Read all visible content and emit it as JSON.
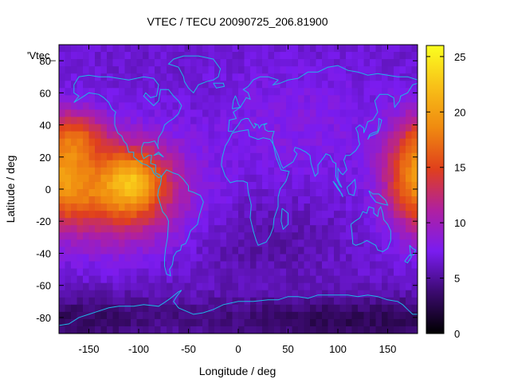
{
  "chart_data": {
    "type": "heatmap",
    "title": "VTEC / TECU 20090725_206.81900",
    "xlabel": "Longitude / deg",
    "ylabel": "Latitude / deg",
    "legend_label": "'Vtec_",
    "xlim": [
      -180,
      180
    ],
    "ylim": [
      -90,
      90
    ],
    "x_ticks": [
      -150,
      -100,
      -50,
      0,
      50,
      100,
      150
    ],
    "y_ticks": [
      -80,
      -60,
      -40,
      -20,
      0,
      20,
      40,
      60,
      80
    ],
    "colorbar": {
      "range": [
        0,
        26
      ],
      "ticks": [
        0,
        5,
        10,
        15,
        20,
        25
      ],
      "colors": [
        "#000000",
        "#3b0a6e",
        "#7a1cf0",
        "#b020a0",
        "#e0401c",
        "#f08a10",
        "#f8c018",
        "#fbff20"
      ],
      "orientation": "vertical",
      "placement": "right"
    },
    "grid": false,
    "features": [
      {
        "lon": -110,
        "lat": 0,
        "vtec": 24,
        "description_level": "maximum near equator over eastern Pacific"
      },
      {
        "lon": -160,
        "lat": 0,
        "vtec": 22
      },
      {
        "lon": -90,
        "lat": 20,
        "vtec": 19
      },
      {
        "lon": -160,
        "lat": 40,
        "vtec": 17
      },
      {
        "lon": 165,
        "lat": 0,
        "vtec": 19
      },
      {
        "lon": 170,
        "lat": 30,
        "vtec": 17
      },
      {
        "lon": 0,
        "lat": 0,
        "vtec": 6
      },
      {
        "lon": 60,
        "lat": 40,
        "vtec": 7
      },
      {
        "lon": 120,
        "lat": -80,
        "vtec": 1
      }
    ]
  }
}
